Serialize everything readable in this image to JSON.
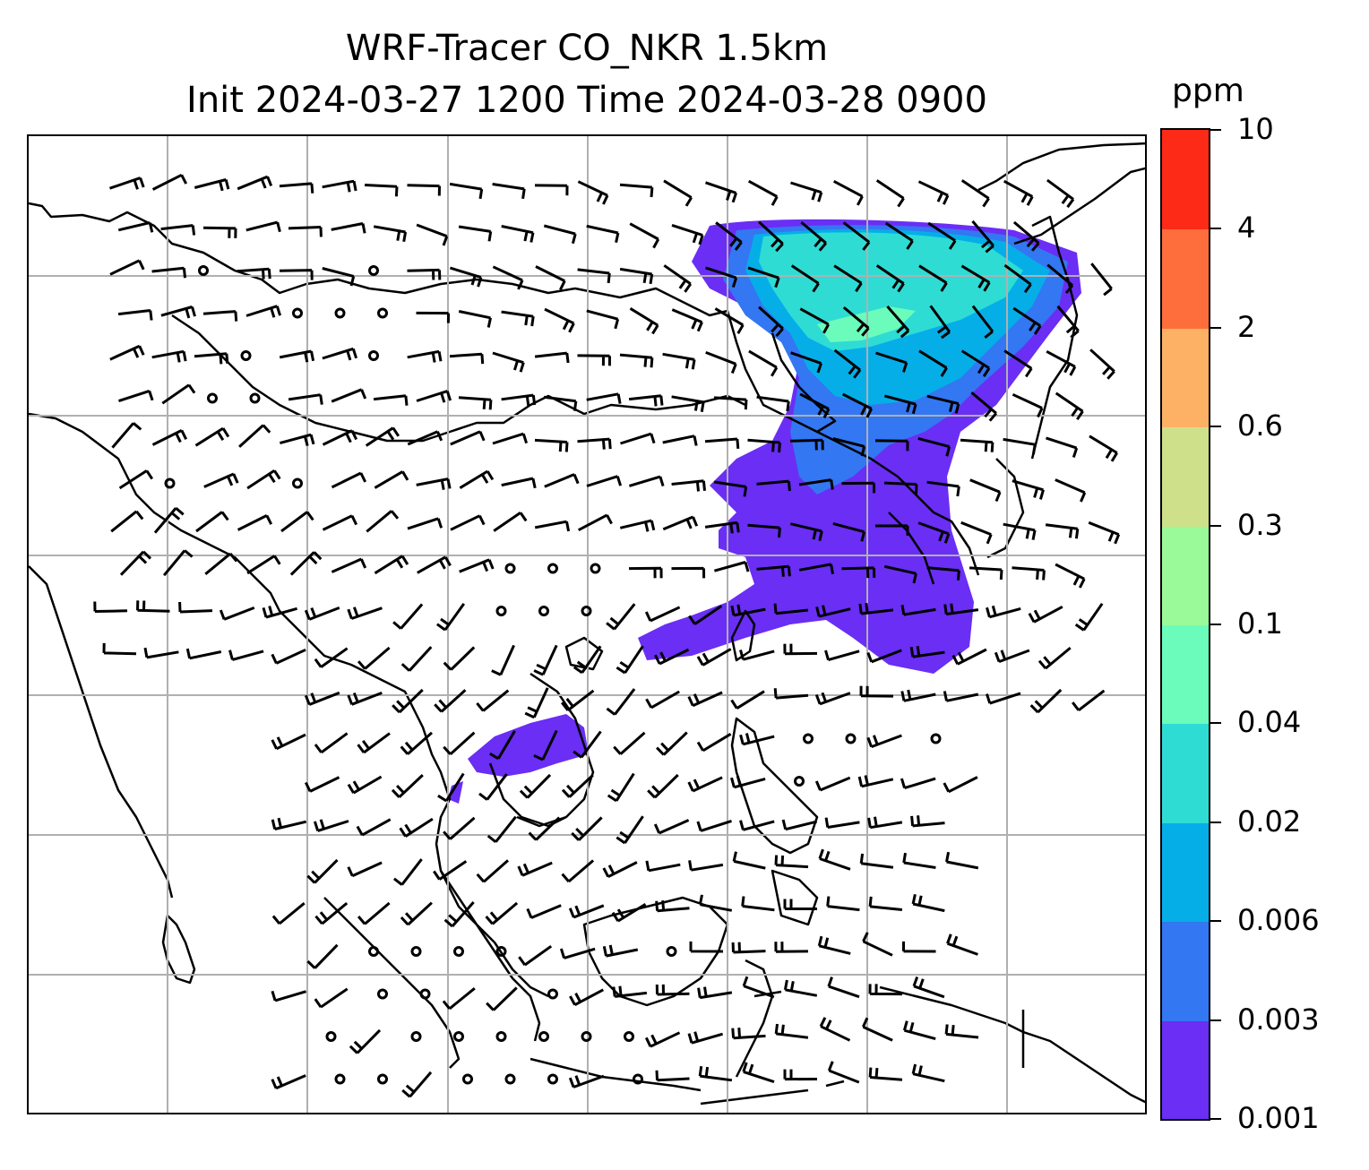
{
  "title": {
    "line1": "WRF-Tracer CO_NKR 1.5km",
    "line2": "Init 2024-03-27 1200 Time 2024-03-28 0900"
  },
  "colorbar": {
    "unit": "ppm",
    "ticks": [
      "0.001",
      "0.003",
      "0.006",
      "0.02",
      "0.04",
      "0.1",
      "0.3",
      "0.6",
      "2",
      "4",
      "10"
    ],
    "colors": [
      "#6a2ef5",
      "#3377f2",
      "#06aee8",
      "#2fdcd4",
      "#6bfcbc",
      "#9afa9a",
      "#cfe08a",
      "#fcb164",
      "#fd6e3c",
      "#fd2a18"
    ]
  },
  "map": {
    "gridlines": true,
    "wind_barbs": true,
    "tracer_fill_levels": [
      "0.001",
      "0.003",
      "0.006",
      "0.02",
      "0.04"
    ]
  }
}
